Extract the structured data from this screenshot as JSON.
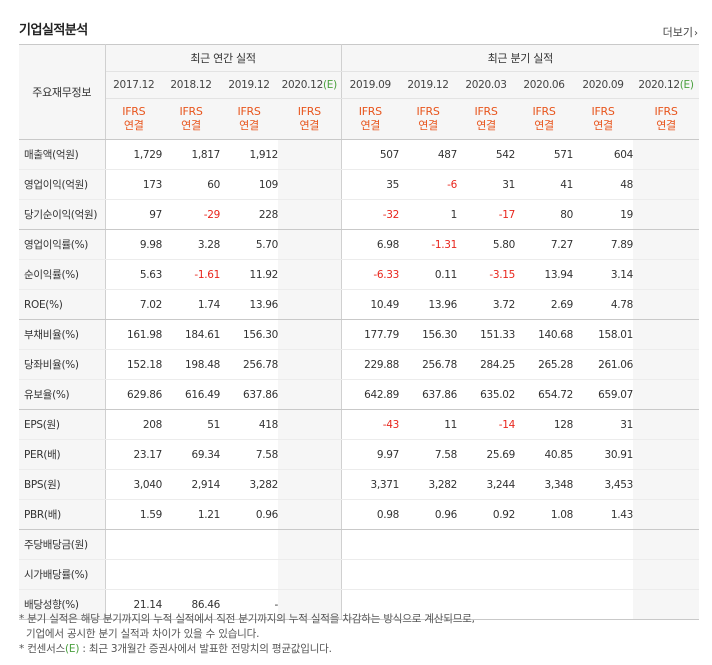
{
  "title": "기업실적분석",
  "more_label": "더보기",
  "more_icon": "chevron-right-icon",
  "header": {
    "row_header_label": "주요재무정보",
    "annual_label": "최근 연간 실적",
    "quarter_label": "최근 분기 실적",
    "columns": [
      {
        "period": "2017.12",
        "estimate": false,
        "basis": "IFRS",
        "type": "연결"
      },
      {
        "period": "2018.12",
        "estimate": false,
        "basis": "IFRS",
        "type": "연결"
      },
      {
        "period": "2019.12",
        "estimate": false,
        "basis": "IFRS",
        "type": "연결"
      },
      {
        "period": "2020.12",
        "estimate": true,
        "est_mark": "(E)",
        "basis": "IFRS",
        "type": "연결"
      },
      {
        "period": "2019.09",
        "estimate": false,
        "basis": "IFRS",
        "type": "연결"
      },
      {
        "period": "2019.12",
        "estimate": false,
        "basis": "IFRS",
        "type": "연결"
      },
      {
        "period": "2020.03",
        "estimate": false,
        "basis": "IFRS",
        "type": "연결"
      },
      {
        "period": "2020.06",
        "estimate": false,
        "basis": "IFRS",
        "type": "연결"
      },
      {
        "period": "2020.09",
        "estimate": false,
        "basis": "IFRS",
        "type": "연결"
      },
      {
        "period": "2020.12",
        "estimate": true,
        "est_mark": "(E)",
        "basis": "IFRS",
        "type": "연결"
      }
    ]
  },
  "rows": [
    {
      "label": "매출액(억원)",
      "values": [
        "1,729",
        "1,817",
        "1,912",
        "",
        "507",
        "487",
        "542",
        "571",
        "604",
        ""
      ]
    },
    {
      "label": "영업이익(억원)",
      "values": [
        "173",
        "60",
        "109",
        "",
        "35",
        "-6",
        "31",
        "41",
        "48",
        ""
      ]
    },
    {
      "label": "당기순이익(억원)",
      "values": [
        "97",
        "-29",
        "228",
        "",
        "-32",
        "1",
        "-17",
        "80",
        "19",
        ""
      ],
      "group_end": true
    },
    {
      "label": "영업이익률(%)",
      "values": [
        "9.98",
        "3.28",
        "5.70",
        "",
        "6.98",
        "-1.31",
        "5.80",
        "7.27",
        "7.89",
        ""
      ]
    },
    {
      "label": "순이익률(%)",
      "values": [
        "5.63",
        "-1.61",
        "11.92",
        "",
        "-6.33",
        "0.11",
        "-3.15",
        "13.94",
        "3.14",
        ""
      ]
    },
    {
      "label": "ROE(%)",
      "values": [
        "7.02",
        "1.74",
        "13.96",
        "",
        "10.49",
        "13.96",
        "3.72",
        "2.69",
        "4.78",
        ""
      ],
      "group_end": true
    },
    {
      "label": "부채비율(%)",
      "values": [
        "161.98",
        "184.61",
        "156.30",
        "",
        "177.79",
        "156.30",
        "151.33",
        "140.68",
        "158.01",
        ""
      ]
    },
    {
      "label": "당좌비율(%)",
      "values": [
        "152.18",
        "198.48",
        "256.78",
        "",
        "229.88",
        "256.78",
        "284.25",
        "265.28",
        "261.06",
        ""
      ]
    },
    {
      "label": "유보율(%)",
      "values": [
        "629.86",
        "616.49",
        "637.86",
        "",
        "642.89",
        "637.86",
        "635.02",
        "654.72",
        "659.07",
        ""
      ],
      "group_end": true
    },
    {
      "label": "EPS(원)",
      "values": [
        "208",
        "51",
        "418",
        "",
        "-43",
        "11",
        "-14",
        "128",
        "31",
        ""
      ]
    },
    {
      "label": "PER(배)",
      "values": [
        "23.17",
        "69.34",
        "7.58",
        "",
        "9.97",
        "7.58",
        "25.69",
        "40.85",
        "30.91",
        ""
      ]
    },
    {
      "label": "BPS(원)",
      "values": [
        "3,040",
        "2,914",
        "3,282",
        "",
        "3,371",
        "3,282",
        "3,244",
        "3,348",
        "3,453",
        ""
      ]
    },
    {
      "label": "PBR(배)",
      "values": [
        "1.59",
        "1.21",
        "0.96",
        "",
        "0.98",
        "0.96",
        "0.92",
        "1.08",
        "1.43",
        ""
      ],
      "group_end": true
    },
    {
      "label": "주당배당금(원)",
      "values": [
        "",
        "",
        "",
        "",
        "",
        "",
        "",
        "",
        "",
        ""
      ]
    },
    {
      "label": "시가배당률(%)",
      "values": [
        "",
        "",
        "",
        "",
        "",
        "",
        "",
        "",
        "",
        ""
      ]
    },
    {
      "label": "배당성향(%)",
      "values": [
        "21.14",
        "86.46",
        "-",
        "",
        "",
        "",
        "",
        "",
        "",
        ""
      ]
    }
  ],
  "notes": {
    "line1": "* 분기 실적은 해당 분기까지의 누적 실적에서 직전 분기까지의 누적 실적을 차감하는 방식으로 계산되므로,",
    "line2": "기업에서 공시한 분기 실적과 차이가 있을 수 있습니다.",
    "line3_prefix": "* 컨센서스",
    "line3_mark": "(E)",
    "line3_suffix": " : 최근 3개월간 증권사에서 발표한 전망치의 평균값입니다."
  },
  "colors": {
    "accent_orange": "#e8551d",
    "negative_red": "#e8261d",
    "estimate_green": "#4aa03e",
    "header_bg": "#f6f6f6"
  }
}
